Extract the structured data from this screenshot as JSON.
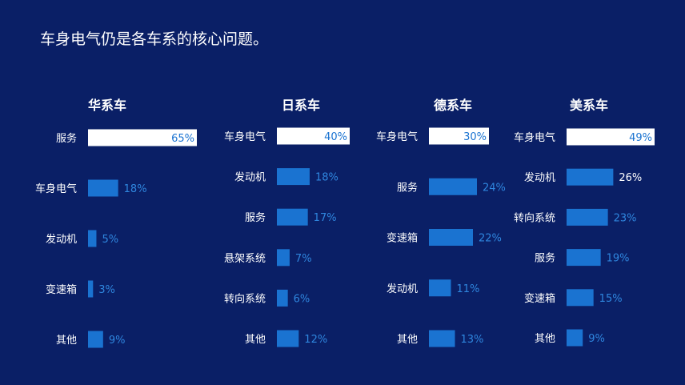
{
  "slide": {
    "title": "车身电气仍是各车系的核心问题。"
  },
  "colors": {
    "background": "#0a1f66",
    "bar": "#1a73d1",
    "bar_value_label": "#2f86de",
    "highlight_bar": "#ffffff",
    "highlight_value": "#1a73d1",
    "text": "#ffffff"
  },
  "chart_data": [
    {
      "type": "bar",
      "orientation": "horizontal",
      "title": "华系车",
      "categories": [
        "服务",
        "车身电气",
        "发动机",
        "变速箱",
        "其他"
      ],
      "values": [
        65,
        18,
        5,
        3,
        9
      ],
      "value_labels": [
        "65%",
        "18%",
        "5%",
        "3%",
        "9%"
      ],
      "unit": "%",
      "xlim": [
        0,
        65
      ],
      "highlight_index": 0
    },
    {
      "type": "bar",
      "orientation": "horizontal",
      "title": "日系车",
      "categories": [
        "车身电气",
        "发动机",
        "服务",
        "悬架系统",
        "转向系统",
        "其他"
      ],
      "values": [
        40,
        18,
        17,
        7,
        6,
        12
      ],
      "value_labels": [
        "40%",
        "18%",
        "17%",
        "7%",
        "6%",
        "12%"
      ],
      "unit": "%",
      "xlim": [
        0,
        40
      ],
      "highlight_index": 0
    },
    {
      "type": "bar",
      "orientation": "horizontal",
      "title": "德系车",
      "categories": [
        "车身电气",
        "服务",
        "变速箱",
        "发动机",
        "其他"
      ],
      "values": [
        30,
        24,
        22,
        11,
        13
      ],
      "value_labels": [
        "30%",
        "24%",
        "22%",
        "11%",
        "13%"
      ],
      "unit": "%",
      "xlim": [
        0,
        30
      ],
      "highlight_index": 0
    },
    {
      "type": "bar",
      "orientation": "horizontal",
      "title": "美系车",
      "categories": [
        "车身电气",
        "发动机",
        "转向系统",
        "服务",
        "变速箱",
        "其他"
      ],
      "values": [
        49,
        26,
        23,
        19,
        15,
        9
      ],
      "value_labels": [
        "49%",
        "26%",
        "23%",
        "19%",
        "15%",
        "9%"
      ],
      "unit": "%",
      "xlim": [
        0,
        49
      ],
      "highlight_index": 0,
      "bright_label_indices": [
        1
      ]
    }
  ]
}
